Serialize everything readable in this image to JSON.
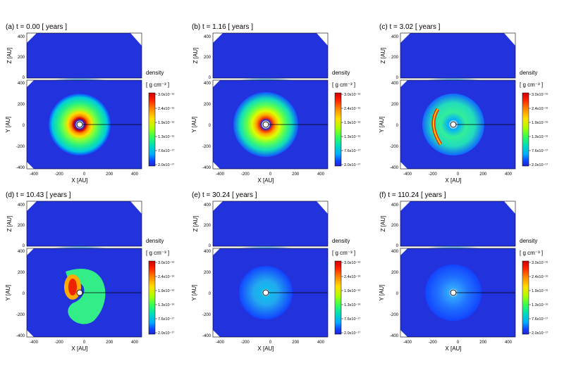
{
  "panels": [
    {
      "label": "(a) t = 0.00 [ years ]"
    },
    {
      "label": "(b) t = 1.16 [ years ]"
    },
    {
      "label": "(c) t = 3.02 [ years ]"
    },
    {
      "label": "(d) t = 10.43 [ years ]"
    },
    {
      "label": "(e) t = 30.24 [ years ]"
    },
    {
      "label": "(f) t = 110.24 [ years ]"
    }
  ],
  "axes": {
    "z_label": "Z [AU]",
    "y_label": "Y [AU]",
    "x_label": "X [AU]",
    "z_ticks": [
      "400",
      "200",
      "0"
    ],
    "y_ticks": [
      "400",
      "200",
      "0",
      "-200",
      "-400"
    ],
    "x_ticks": [
      "-400",
      "-200",
      "0",
      "200",
      "400"
    ]
  },
  "colorbar": {
    "title": "density",
    "unit": "[ g cm⁻³ ]",
    "ticks": [
      "3.0x10⁻¹⁶",
      "2.4x10⁻¹⁶",
      "1.9x10⁻¹⁶",
      "1.3x10⁻¹⁶",
      "7.6x10⁻¹⁷",
      "2.0x10⁻¹⁷"
    ],
    "colors": [
      "#cc0000",
      "#ff2200",
      "#ff8800",
      "#ffdd00",
      "#aaff00",
      "#33ff55",
      "#00ddbb",
      "#00aaff",
      "#1144ff",
      "#2222cc"
    ]
  }
}
